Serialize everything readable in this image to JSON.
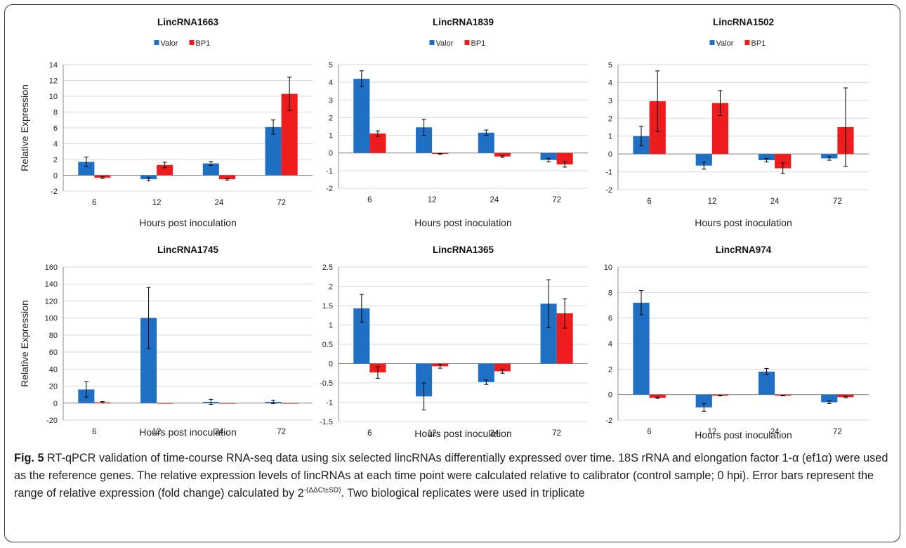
{
  "chart_data": [
    {
      "type": "bar",
      "title": "LincRNA1663",
      "categories": [
        "6",
        "12",
        "24",
        "72"
      ],
      "series": [
        {
          "name": "Valor",
          "values": [
            1.7,
            -0.5,
            1.5,
            6.1
          ],
          "errors": [
            0.6,
            0.2,
            0.25,
            0.9
          ]
        },
        {
          "name": "BP1",
          "values": [
            -0.3,
            1.3,
            -0.5,
            10.3
          ],
          "errors": [
            0.1,
            0.35,
            0.1,
            2.1
          ]
        }
      ],
      "xlabel": "Hours post inoculation",
      "ylabel": "Relative Expression",
      "ylim": [
        -2,
        14
      ],
      "yticks": [
        -2,
        0,
        2,
        4,
        6,
        8,
        10,
        12,
        14
      ],
      "legend_position": "top",
      "grid": true
    },
    {
      "type": "bar",
      "title": "LincRNA1839",
      "categories": [
        "6",
        "12",
        "24",
        "72"
      ],
      "series": [
        {
          "name": "Valor",
          "values": [
            4.2,
            1.45,
            1.15,
            -0.4
          ],
          "errors": [
            0.45,
            0.45,
            0.15,
            0.1
          ]
        },
        {
          "name": "BP1",
          "values": [
            1.1,
            -0.05,
            -0.2,
            -0.65
          ],
          "errors": [
            0.15,
            0.02,
            0.05,
            0.15
          ]
        }
      ],
      "xlabel": "Hours post inoculation",
      "ylabel": "",
      "ylim": [
        -2,
        5
      ],
      "yticks": [
        -2,
        -1,
        0,
        1,
        2,
        3,
        4,
        5
      ],
      "legend_position": "top",
      "grid": true
    },
    {
      "type": "bar",
      "title": "LincRNA1502",
      "categories": [
        "6",
        "12",
        "24",
        "72"
      ],
      "series": [
        {
          "name": "Valor",
          "values": [
            1.0,
            -0.65,
            -0.35,
            -0.25
          ],
          "errors": [
            0.55,
            0.2,
            0.1,
            0.1
          ]
        },
        {
          "name": "BP1",
          "values": [
            2.95,
            2.85,
            -0.8,
            1.5
          ],
          "errors": [
            1.7,
            0.7,
            0.3,
            2.2
          ]
        }
      ],
      "xlabel": "Hours post inoculation",
      "ylabel": "",
      "ylim": [
        -2,
        5
      ],
      "yticks": [
        -2,
        -1,
        0,
        1,
        2,
        3,
        4,
        5
      ],
      "legend_position": "top",
      "grid": true
    },
    {
      "type": "bar",
      "title": "LincRNA1745",
      "categories": [
        "6",
        "12",
        "24",
        "72"
      ],
      "series": [
        {
          "name": "Valor",
          "values": [
            16,
            100,
            1.5,
            1.5
          ],
          "errors": [
            9,
            36,
            3,
            2
          ]
        },
        {
          "name": "BP1",
          "values": [
            1,
            0,
            0,
            0
          ],
          "errors": [
            0.8,
            0,
            0,
            0
          ]
        }
      ],
      "xlabel": "Hours post inoculation",
      "ylabel": "Relative Expression",
      "ylim": [
        -20,
        160
      ],
      "yticks": [
        -20,
        0,
        20,
        40,
        60,
        80,
        100,
        120,
        140,
        160
      ],
      "legend_position": "none",
      "grid": true
    },
    {
      "type": "bar",
      "title": "LincRNA1365",
      "categories": [
        "6",
        "12",
        "24",
        "72"
      ],
      "series": [
        {
          "name": "Valor",
          "values": [
            1.43,
            -0.85,
            -0.48,
            1.55
          ],
          "errors": [
            0.36,
            0.35,
            0.06,
            0.62
          ]
        },
        {
          "name": "BP1",
          "values": [
            -0.23,
            -0.07,
            -0.2,
            1.3
          ],
          "errors": [
            0.15,
            0.05,
            0.05,
            0.38
          ]
        }
      ],
      "xlabel": "Hours post inoculation",
      "ylabel": "",
      "ylim": [
        -1.5,
        2.5
      ],
      "yticks": [
        -1.5,
        -1,
        -0.5,
        0,
        0.5,
        1,
        1.5,
        2,
        2.5
      ],
      "legend_position": "none",
      "grid": true
    },
    {
      "type": "bar",
      "title": "LincRNA974",
      "categories": [
        "6",
        "12",
        "24",
        "72"
      ],
      "series": [
        {
          "name": "Valor",
          "values": [
            7.2,
            -1.0,
            1.8,
            -0.6
          ],
          "errors": [
            0.95,
            0.3,
            0.25,
            0.1
          ]
        },
        {
          "name": "BP1",
          "values": [
            -0.25,
            -0.08,
            -0.08,
            -0.2
          ],
          "errors": [
            0.05,
            0.02,
            0.02,
            0.05
          ]
        }
      ],
      "xlabel": "Hours post inoculation",
      "ylabel": "",
      "ylim": [
        -2,
        10
      ],
      "yticks": [
        -2,
        0,
        2,
        4,
        6,
        8,
        10
      ],
      "legend_position": "none",
      "grid": true
    }
  ],
  "colors": {
    "valor": "#1f6fc4",
    "bp1": "#ee1c1c",
    "grid": "#d9d9d9",
    "axis": "#8c8c8c",
    "caption_fig": "#1a1a1a"
  },
  "caption": {
    "label": "Fig. 5",
    "text_before_sup": " RT-qPCR validation of time-course RNA-seq data using six selected lincRNAs differentially expressed over time. 18S rRNA and elongation factor 1-α (ef1α) were used as the reference genes. The relative expression levels of lincRNAs at each time point were calculated relative to calibrator (control sample; 0 hpi). Error bars represent the range of relative expression (fold change) calculated by 2",
    "superscript": "-(ΔΔCt±SD)",
    "text_after_sup": ". Two biological replicates were used in triplicate"
  }
}
